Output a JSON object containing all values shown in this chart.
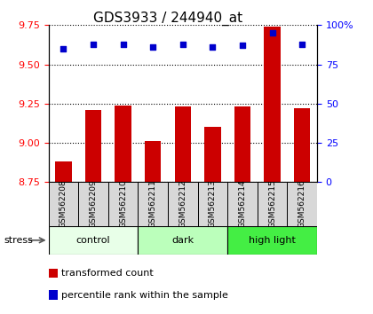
{
  "title": "GDS3933 / 244940_at",
  "samples": [
    "GSM562208",
    "GSM562209",
    "GSM562210",
    "GSM562211",
    "GSM562212",
    "GSM562213",
    "GSM562214",
    "GSM562215",
    "GSM562216"
  ],
  "transformed_counts": [
    8.88,
    9.21,
    9.24,
    9.01,
    9.23,
    9.1,
    9.23,
    9.74,
    9.22
  ],
  "percentile_ranks": [
    85,
    88,
    88,
    86,
    88,
    86,
    87,
    95,
    88
  ],
  "groups": [
    {
      "label": "control",
      "start": 0,
      "end": 3,
      "color": "#e8ffe8"
    },
    {
      "label": "dark",
      "start": 3,
      "end": 6,
      "color": "#bbffbb"
    },
    {
      "label": "high light",
      "start": 6,
      "end": 9,
      "color": "#44ee44"
    }
  ],
  "ylim_left": [
    8.75,
    9.75
  ],
  "ylim_right": [
    0,
    100
  ],
  "yticks_left": [
    8.75,
    9.0,
    9.25,
    9.5,
    9.75
  ],
  "yticks_right": [
    0,
    25,
    50,
    75,
    100
  ],
  "bar_color": "#cc0000",
  "dot_color": "#0000cc",
  "bar_width": 0.55,
  "stress_label": "stress",
  "legend_bar_label": "transformed count",
  "legend_dot_label": "percentile rank within the sample",
  "title_fontsize": 11,
  "tick_fontsize": 8,
  "label_fontsize": 8,
  "sample_fontsize": 6.5
}
